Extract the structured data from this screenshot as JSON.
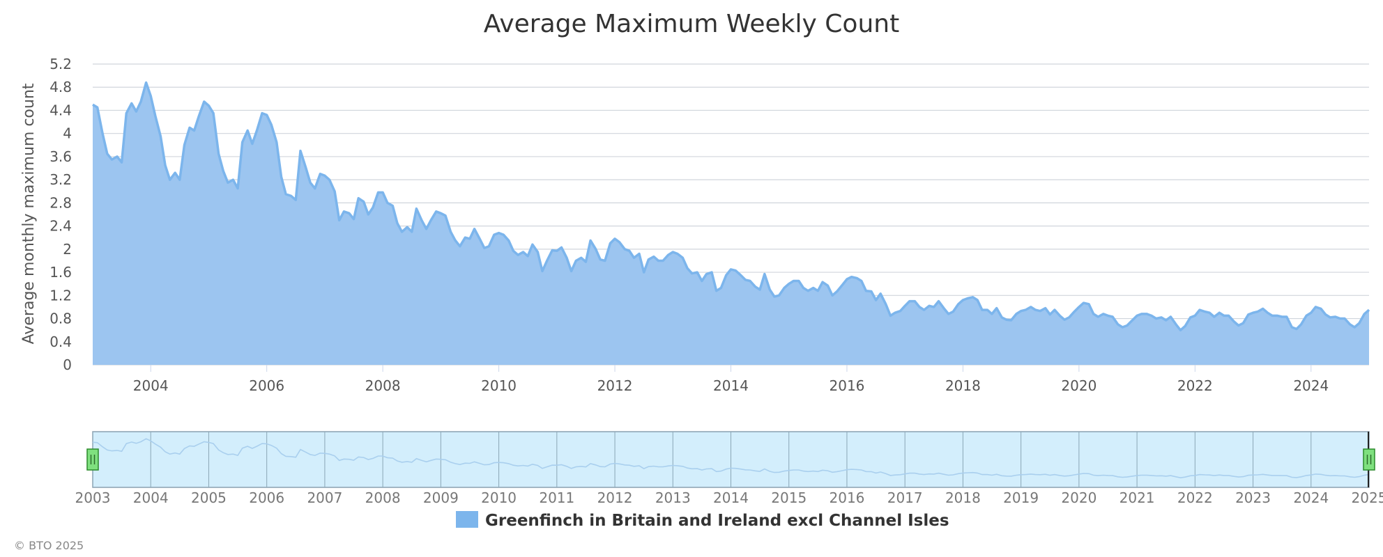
{
  "chart_data": {
    "type": "area",
    "title": "Average Maximum Weekly Count",
    "xlabel": "",
    "ylabel": "Average monthly maximum count",
    "xlim": [
      2003.0,
      2025.0
    ],
    "ylim": [
      0,
      5.2
    ],
    "yticks": [
      "0",
      "0.4",
      "0.8",
      "1.2",
      "1.6",
      "2",
      "2.4",
      "2.8",
      "3.2",
      "3.6",
      "4",
      "4.4",
      "4.8",
      "5.2"
    ],
    "xticks": [
      "2004",
      "2006",
      "2008",
      "2010",
      "2012",
      "2014",
      "2016",
      "2018",
      "2020",
      "2022",
      "2024"
    ],
    "navigator_ticks": [
      "2003",
      "2004",
      "2005",
      "2006",
      "2007",
      "2008",
      "2009",
      "2010",
      "2011",
      "2012",
      "2013",
      "2014",
      "2015",
      "2016",
      "2017",
      "2018",
      "2019",
      "2020",
      "2021",
      "2022",
      "2023",
      "2024",
      "2025"
    ],
    "grid": true,
    "legend_position": "bottom-center",
    "colors": {
      "fill": "#9cc5f0",
      "line": "#7cb5ec",
      "navigator_bg": "#d3eefc",
      "handle": "#7fe07f"
    },
    "series": [
      {
        "name": "Greenfinch in Britain and Ireland excl Channel Isles",
        "points": [
          [
            2003.0,
            4.5
          ],
          [
            2003.08,
            4.45
          ],
          [
            2003.17,
            4.0
          ],
          [
            2003.25,
            3.65
          ],
          [
            2003.33,
            3.55
          ],
          [
            2003.42,
            3.6
          ],
          [
            2003.5,
            3.5
          ],
          [
            2003.58,
            4.35
          ],
          [
            2003.67,
            4.52
          ],
          [
            2003.75,
            4.38
          ],
          [
            2003.83,
            4.55
          ],
          [
            2003.92,
            4.88
          ],
          [
            2004.0,
            4.65
          ],
          [
            2004.08,
            4.3
          ],
          [
            2004.17,
            3.95
          ],
          [
            2004.25,
            3.45
          ],
          [
            2004.33,
            3.2
          ],
          [
            2004.42,
            3.32
          ],
          [
            2004.5,
            3.2
          ],
          [
            2004.58,
            3.8
          ],
          [
            2004.67,
            4.1
          ],
          [
            2004.75,
            4.05
          ],
          [
            2004.83,
            4.3
          ],
          [
            2004.92,
            4.55
          ],
          [
            2005.0,
            4.48
          ],
          [
            2005.08,
            4.35
          ],
          [
            2005.17,
            3.65
          ],
          [
            2005.25,
            3.35
          ],
          [
            2005.33,
            3.15
          ],
          [
            2005.42,
            3.2
          ],
          [
            2005.5,
            3.05
          ],
          [
            2005.58,
            3.85
          ],
          [
            2005.67,
            4.05
          ],
          [
            2005.75,
            3.82
          ],
          [
            2005.83,
            4.05
          ],
          [
            2005.92,
            4.35
          ],
          [
            2006.0,
            4.32
          ],
          [
            2006.08,
            4.15
          ],
          [
            2006.17,
            3.85
          ],
          [
            2006.25,
            3.25
          ],
          [
            2006.33,
            2.95
          ],
          [
            2006.42,
            2.92
          ],
          [
            2006.5,
            2.85
          ],
          [
            2006.58,
            3.7
          ],
          [
            2006.67,
            3.42
          ],
          [
            2006.75,
            3.15
          ],
          [
            2006.83,
            3.05
          ],
          [
            2006.92,
            3.3
          ],
          [
            2007.0,
            3.27
          ],
          [
            2007.08,
            3.2
          ],
          [
            2007.17,
            3.0
          ],
          [
            2007.25,
            2.5
          ],
          [
            2007.33,
            2.65
          ],
          [
            2007.42,
            2.62
          ],
          [
            2007.5,
            2.52
          ],
          [
            2007.58,
            2.88
          ],
          [
            2007.67,
            2.82
          ],
          [
            2007.75,
            2.6
          ],
          [
            2007.83,
            2.72
          ],
          [
            2007.92,
            2.98
          ],
          [
            2008.0,
            2.98
          ],
          [
            2008.08,
            2.8
          ],
          [
            2008.17,
            2.75
          ],
          [
            2008.25,
            2.45
          ],
          [
            2008.33,
            2.3
          ],
          [
            2008.42,
            2.38
          ],
          [
            2008.5,
            2.3
          ],
          [
            2008.58,
            2.7
          ],
          [
            2008.67,
            2.5
          ],
          [
            2008.75,
            2.35
          ],
          [
            2008.83,
            2.5
          ],
          [
            2008.92,
            2.65
          ],
          [
            2009.0,
            2.62
          ],
          [
            2009.08,
            2.58
          ],
          [
            2009.17,
            2.3
          ],
          [
            2009.25,
            2.15
          ],
          [
            2009.33,
            2.05
          ],
          [
            2009.42,
            2.2
          ],
          [
            2009.5,
            2.18
          ],
          [
            2009.58,
            2.35
          ],
          [
            2009.67,
            2.18
          ],
          [
            2009.75,
            2.02
          ],
          [
            2009.83,
            2.05
          ],
          [
            2009.92,
            2.25
          ],
          [
            2010.0,
            2.28
          ],
          [
            2010.08,
            2.25
          ],
          [
            2010.17,
            2.15
          ],
          [
            2010.25,
            1.97
          ],
          [
            2010.33,
            1.9
          ],
          [
            2010.42,
            1.95
          ],
          [
            2010.5,
            1.88
          ],
          [
            2010.58,
            2.08
          ],
          [
            2010.67,
            1.95
          ],
          [
            2010.75,
            1.62
          ],
          [
            2010.83,
            1.8
          ],
          [
            2010.92,
            1.98
          ],
          [
            2011.0,
            1.97
          ],
          [
            2011.08,
            2.03
          ],
          [
            2011.17,
            1.85
          ],
          [
            2011.25,
            1.62
          ],
          [
            2011.33,
            1.8
          ],
          [
            2011.42,
            1.85
          ],
          [
            2011.5,
            1.78
          ],
          [
            2011.58,
            2.15
          ],
          [
            2011.67,
            2.0
          ],
          [
            2011.75,
            1.82
          ],
          [
            2011.83,
            1.8
          ],
          [
            2011.92,
            2.1
          ],
          [
            2012.0,
            2.18
          ],
          [
            2012.08,
            2.12
          ],
          [
            2012.17,
            2.0
          ],
          [
            2012.25,
            1.97
          ],
          [
            2012.33,
            1.85
          ],
          [
            2012.42,
            1.92
          ],
          [
            2012.5,
            1.6
          ],
          [
            2012.58,
            1.82
          ],
          [
            2012.67,
            1.87
          ],
          [
            2012.75,
            1.8
          ],
          [
            2012.83,
            1.8
          ],
          [
            2012.92,
            1.9
          ],
          [
            2013.0,
            1.95
          ],
          [
            2013.08,
            1.92
          ],
          [
            2013.17,
            1.85
          ],
          [
            2013.25,
            1.67
          ],
          [
            2013.33,
            1.58
          ],
          [
            2013.42,
            1.6
          ],
          [
            2013.5,
            1.45
          ],
          [
            2013.58,
            1.57
          ],
          [
            2013.67,
            1.6
          ],
          [
            2013.75,
            1.28
          ],
          [
            2013.83,
            1.33
          ],
          [
            2013.92,
            1.55
          ],
          [
            2014.0,
            1.65
          ],
          [
            2014.08,
            1.63
          ],
          [
            2014.17,
            1.55
          ],
          [
            2014.25,
            1.47
          ],
          [
            2014.33,
            1.45
          ],
          [
            2014.42,
            1.35
          ],
          [
            2014.5,
            1.3
          ],
          [
            2014.58,
            1.57
          ],
          [
            2014.67,
            1.3
          ],
          [
            2014.75,
            1.18
          ],
          [
            2014.83,
            1.2
          ],
          [
            2014.92,
            1.33
          ],
          [
            2015.0,
            1.4
          ],
          [
            2015.08,
            1.45
          ],
          [
            2015.17,
            1.45
          ],
          [
            2015.25,
            1.33
          ],
          [
            2015.33,
            1.28
          ],
          [
            2015.42,
            1.33
          ],
          [
            2015.5,
            1.28
          ],
          [
            2015.58,
            1.43
          ],
          [
            2015.67,
            1.37
          ],
          [
            2015.75,
            1.2
          ],
          [
            2015.83,
            1.27
          ],
          [
            2015.92,
            1.38
          ],
          [
            2016.0,
            1.48
          ],
          [
            2016.08,
            1.52
          ],
          [
            2016.17,
            1.5
          ],
          [
            2016.25,
            1.45
          ],
          [
            2016.33,
            1.28
          ],
          [
            2016.42,
            1.27
          ],
          [
            2016.5,
            1.12
          ],
          [
            2016.58,
            1.23
          ],
          [
            2016.67,
            1.05
          ],
          [
            2016.75,
            0.85
          ],
          [
            2016.83,
            0.9
          ],
          [
            2016.92,
            0.93
          ],
          [
            2017.0,
            1.02
          ],
          [
            2017.08,
            1.1
          ],
          [
            2017.17,
            1.1
          ],
          [
            2017.25,
            1.0
          ],
          [
            2017.33,
            0.95
          ],
          [
            2017.42,
            1.02
          ],
          [
            2017.5,
            1.0
          ],
          [
            2017.58,
            1.1
          ],
          [
            2017.67,
            0.98
          ],
          [
            2017.75,
            0.88
          ],
          [
            2017.83,
            0.92
          ],
          [
            2017.92,
            1.05
          ],
          [
            2018.0,
            1.12
          ],
          [
            2018.08,
            1.15
          ],
          [
            2018.17,
            1.17
          ],
          [
            2018.25,
            1.12
          ],
          [
            2018.33,
            0.95
          ],
          [
            2018.42,
            0.95
          ],
          [
            2018.5,
            0.88
          ],
          [
            2018.58,
            0.98
          ],
          [
            2018.67,
            0.82
          ],
          [
            2018.75,
            0.78
          ],
          [
            2018.83,
            0.77
          ],
          [
            2018.92,
            0.88
          ],
          [
            2019.0,
            0.93
          ],
          [
            2019.08,
            0.95
          ],
          [
            2019.17,
            1.0
          ],
          [
            2019.25,
            0.95
          ],
          [
            2019.33,
            0.93
          ],
          [
            2019.42,
            0.98
          ],
          [
            2019.5,
            0.87
          ],
          [
            2019.58,
            0.95
          ],
          [
            2019.67,
            0.85
          ],
          [
            2019.75,
            0.78
          ],
          [
            2019.83,
            0.82
          ],
          [
            2019.92,
            0.92
          ],
          [
            2020.0,
            1.0
          ],
          [
            2020.08,
            1.07
          ],
          [
            2020.17,
            1.05
          ],
          [
            2020.25,
            0.88
          ],
          [
            2020.33,
            0.83
          ],
          [
            2020.42,
            0.88
          ],
          [
            2020.5,
            0.85
          ],
          [
            2020.58,
            0.83
          ],
          [
            2020.67,
            0.7
          ],
          [
            2020.75,
            0.65
          ],
          [
            2020.83,
            0.68
          ],
          [
            2020.92,
            0.77
          ],
          [
            2021.0,
            0.85
          ],
          [
            2021.08,
            0.88
          ],
          [
            2021.17,
            0.88
          ],
          [
            2021.25,
            0.85
          ],
          [
            2021.33,
            0.8
          ],
          [
            2021.42,
            0.82
          ],
          [
            2021.5,
            0.77
          ],
          [
            2021.58,
            0.83
          ],
          [
            2021.67,
            0.7
          ],
          [
            2021.75,
            0.6
          ],
          [
            2021.83,
            0.67
          ],
          [
            2021.92,
            0.82
          ],
          [
            2022.0,
            0.85
          ],
          [
            2022.08,
            0.95
          ],
          [
            2022.17,
            0.92
          ],
          [
            2022.25,
            0.9
          ],
          [
            2022.33,
            0.83
          ],
          [
            2022.42,
            0.9
          ],
          [
            2022.5,
            0.85
          ],
          [
            2022.58,
            0.85
          ],
          [
            2022.67,
            0.75
          ],
          [
            2022.75,
            0.68
          ],
          [
            2022.83,
            0.72
          ],
          [
            2022.92,
            0.87
          ],
          [
            2023.0,
            0.9
          ],
          [
            2023.08,
            0.92
          ],
          [
            2023.17,
            0.97
          ],
          [
            2023.25,
            0.9
          ],
          [
            2023.33,
            0.85
          ],
          [
            2023.42,
            0.85
          ],
          [
            2023.5,
            0.83
          ],
          [
            2023.58,
            0.83
          ],
          [
            2023.67,
            0.65
          ],
          [
            2023.75,
            0.62
          ],
          [
            2023.83,
            0.7
          ],
          [
            2023.92,
            0.85
          ],
          [
            2024.0,
            0.9
          ],
          [
            2024.08,
            1.0
          ],
          [
            2024.17,
            0.97
          ],
          [
            2024.25,
            0.87
          ],
          [
            2024.33,
            0.82
          ],
          [
            2024.42,
            0.83
          ],
          [
            2024.5,
            0.8
          ],
          [
            2024.58,
            0.8
          ],
          [
            2024.67,
            0.7
          ],
          [
            2024.75,
            0.65
          ],
          [
            2024.83,
            0.72
          ],
          [
            2024.92,
            0.88
          ],
          [
            2025.0,
            0.95
          ]
        ]
      }
    ]
  },
  "footer": {
    "credit": "© BTO 2025"
  }
}
